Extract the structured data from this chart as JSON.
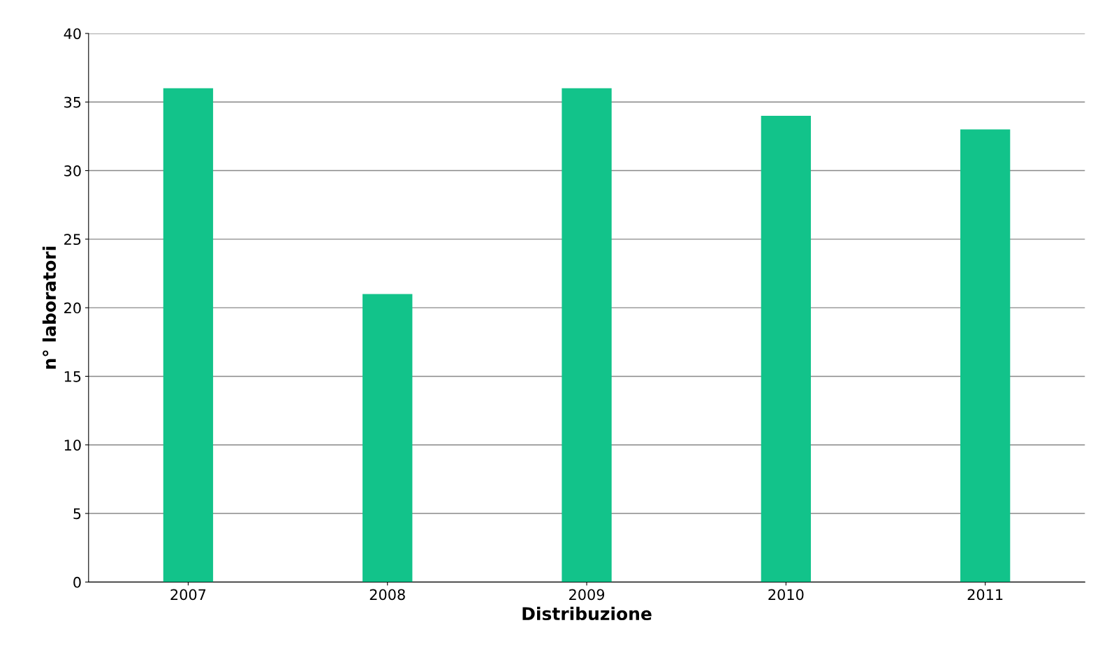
{
  "chart_data": {
    "type": "bar",
    "xlabel": "Distribuzione",
    "ylabel": "n° laboratori",
    "categories": [
      "2007",
      "2008",
      "2009",
      "2010",
      "2011"
    ],
    "values": [
      36,
      21,
      36,
      34,
      33
    ],
    "color": "#12c38a",
    "ylim": [
      0,
      40
    ],
    "yticks": [
      0,
      5,
      10,
      15,
      20,
      25,
      30,
      35,
      40
    ],
    "grid": "y"
  }
}
